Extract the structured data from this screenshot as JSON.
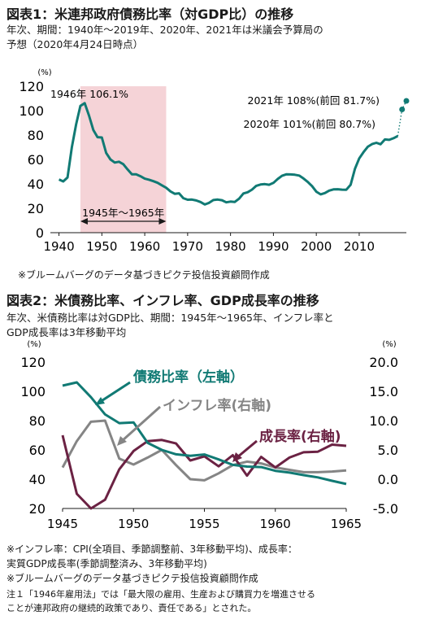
{
  "fig1": {
    "title": "図表1：米連邦政府債務比率（対GDP比）の推移",
    "subtitle_1": "年次、期間：1940年～2019年、2020年、2021年は米議会予算局の",
    "subtitle_2": "予想（2020年4月24日時点）",
    "unit": "(%)",
    "source": "※ブルームバーグのデータ基づきピクテ投信投資顧問作成",
    "annotations": {
      "peak": "1946年 106.1%",
      "period": "1945年～1965年",
      "y2021": "2021年 108%(前回 81.7%)",
      "y2020": "2020年 101%(前回 80.7%)"
    }
  },
  "fig2": {
    "title": "図表2：米債務比率、インフレ率、GDP成長率の推移",
    "subtitle_1": "年次、米債務比率は対GDP比、期間：1945年～1965年、インフレ率と",
    "subtitle_2": "GDP成長率は3年移動平均",
    "unit_left": "(%)",
    "unit_right": "(%)",
    "label_debt": "債務比率（左軸）",
    "label_inflation": "インフレ率(右軸)",
    "label_growth": "成長率(右軸)",
    "notes": [
      "※インフレ率：CPI(全項目、季節調整前、3年移動平均)、成長率：",
      "実質GDP成長率(季節調整済み、3年移動平均)",
      "※ブルームバーグのデータ基づきピクテ投信投資顧問作成",
      "注１「1946年雇用法」では「最大限の雇用、生産および購買力を増進させる",
      "ことが連邦政府の継続的政策であり、責任である」とされた。"
    ]
  },
  "chart_data": [
    {
      "type": "line",
      "title": "図表1：米連邦政府債務比率（対GDP比）の推移",
      "ylabel": "(%)",
      "xlim": [
        1938,
        2021
      ],
      "ylim": [
        0,
        120
      ],
      "xticks": [
        1940,
        1950,
        1960,
        1970,
        1980,
        1990,
        2000,
        2010
      ],
      "yticks": [
        0,
        20,
        40,
        60,
        80,
        100,
        120
      ],
      "grid": false,
      "highlight_range": [
        1945,
        1965
      ],
      "highlight_color": "#f5d3d7",
      "series": [
        {
          "color": "#117a74",
          "x": [
            1940,
            1941,
            1942,
            1943,
            1944,
            1945,
            1946,
            1947,
            1948,
            1949,
            1950,
            1951,
            1952,
            1953,
            1954,
            1955,
            1956,
            1957,
            1958,
            1959,
            1960,
            1961,
            1962,
            1963,
            1964,
            1965,
            1966,
            1967,
            1968,
            1969,
            1970,
            1971,
            1972,
            1973,
            1974,
            1975,
            1976,
            1977,
            1978,
            1979,
            1980,
            1981,
            1982,
            1983,
            1984,
            1985,
            1986,
            1987,
            1988,
            1989,
            1990,
            1991,
            1992,
            1993,
            1994,
            1995,
            1996,
            1997,
            1998,
            1999,
            2000,
            2001,
            2002,
            2003,
            2004,
            2005,
            2006,
            2007,
            2008,
            2009,
            2010,
            2011,
            2012,
            2013,
            2014,
            2015,
            2016,
            2017,
            2018,
            2019
          ],
          "values": [
            43.6,
            42.0,
            45.3,
            70.0,
            88.9,
            103.9,
            106.1,
            96.0,
            84.2,
            78.3,
            78.0,
            65.4,
            60.0,
            57.5,
            58.1,
            56.1,
            51.8,
            47.8,
            47.8,
            46.3,
            44.3,
            43.4,
            42.2,
            40.9,
            38.8,
            36.8,
            33.8,
            31.9,
            32.3,
            28.3,
            27.0,
            27.1,
            26.4,
            25.1,
            23.1,
            24.5,
            26.7,
            27.1,
            26.6,
            24.9,
            25.5,
            25.2,
            27.9,
            32.1,
            33.1,
            35.3,
            38.4,
            39.5,
            39.8,
            39.3,
            40.8,
            44.0,
            46.6,
            47.8,
            47.7,
            47.5,
            46.8,
            44.5,
            41.6,
            38.2,
            33.6,
            31.4,
            32.5,
            34.5,
            35.5,
            35.6,
            35.3,
            35.2,
            39.3,
            52.3,
            60.9,
            65.9,
            70.4,
            72.6,
            73.7,
            72.5,
            76.4,
            76.1,
            77.4,
            79.2
          ]
        },
        {
          "color": "#117a74",
          "style": "dotted-projection",
          "x": [
            2019,
            2020,
            2021
          ],
          "values": [
            79.2,
            101,
            108
          ]
        }
      ]
    },
    {
      "type": "line",
      "title": "図表2：米債務比率、インフレ率、GDP成長率の推移",
      "xlim": [
        1945,
        1965
      ],
      "xticks": [
        1945,
        1950,
        1955,
        1960,
        1965
      ],
      "y_left": {
        "ylim": [
          20,
          120
        ],
        "ticks": [
          20,
          40,
          60,
          80,
          100,
          120
        ],
        "unit": "(%)"
      },
      "y_right": {
        "ylim": [
          -5,
          20
        ],
        "ticks": [
          "-5.0",
          "0.0",
          "5.0",
          "10.0",
          "15.0",
          "20.0"
        ],
        "unit": "(%)"
      },
      "grid": false,
      "series": [
        {
          "name": "債務比率（左軸）",
          "axis": "left",
          "color": "#117a74",
          "x": [
            1945,
            1946,
            1947,
            1948,
            1949,
            1950,
            1951,
            1952,
            1953,
            1954,
            1955,
            1956,
            1957,
            1958,
            1959,
            1960,
            1961,
            1962,
            1963,
            1964,
            1965
          ],
          "values": [
            103.9,
            106.1,
            96.0,
            84.2,
            78.3,
            78.8,
            64.8,
            60.0,
            57.0,
            56.0,
            56.9,
            53.5,
            49.8,
            48.6,
            48.3,
            45.7,
            44.5,
            42.8,
            41.2,
            38.9,
            36.7
          ]
        },
        {
          "name": "インフレ率(右軸)",
          "axis": "right",
          "color": "#858585",
          "x": [
            1945,
            1946,
            1947,
            1948,
            1949,
            1950,
            1951,
            1952,
            1953,
            1954,
            1955,
            1956,
            1957,
            1958,
            1959,
            1960,
            1961,
            1962,
            1963,
            1964,
            1965
          ],
          "values": [
            2.0,
            6.5,
            9.8,
            10.0,
            3.5,
            2.5,
            3.7,
            5.0,
            2.4,
            0.0,
            -0.2,
            1.0,
            2.4,
            3.0,
            2.7,
            2.0,
            1.6,
            1.2,
            1.2,
            1.3,
            1.5
          ]
        },
        {
          "name": "成長率(右軸)",
          "axis": "right",
          "color": "#6b2243",
          "x": [
            1945,
            1946,
            1947,
            1948,
            1949,
            1950,
            1951,
            1952,
            1953,
            1954,
            1955,
            1956,
            1957,
            1958,
            1959,
            1960,
            1961,
            1962,
            1963,
            1964,
            1965
          ],
          "values": [
            7.5,
            -2.5,
            -5.0,
            -3.5,
            1.7,
            4.8,
            6.5,
            6.7,
            6.1,
            3.2,
            3.9,
            2.2,
            4.1,
            0.6,
            3.8,
            2.0,
            3.7,
            4.6,
            4.7,
            5.9,
            5.7
          ]
        }
      ]
    }
  ]
}
